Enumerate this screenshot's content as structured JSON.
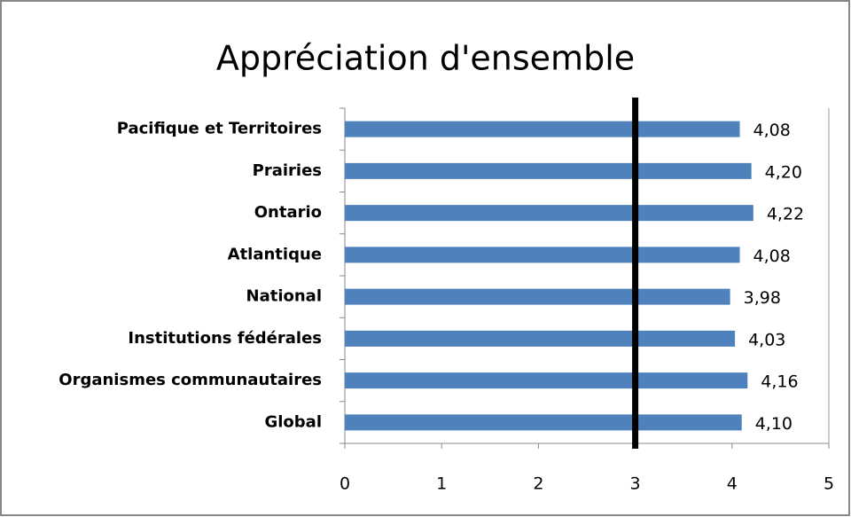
{
  "chart_data": {
    "type": "barh",
    "title": "Appréciation d'ensemble",
    "categories": [
      "Pacifique et Territoires",
      "Prairies",
      "Ontario",
      "Atlantique",
      "National",
      "Institutions fédérales",
      "Organismes communautaires",
      "Global"
    ],
    "values": [
      4.08,
      4.2,
      4.22,
      4.08,
      3.98,
      4.03,
      4.16,
      4.1
    ],
    "value_labels": [
      "4,08",
      "4,20",
      "4,22",
      "4,08",
      "3,98",
      "4,03",
      "4,16",
      "4,10"
    ],
    "color": "#4f81bd",
    "xlim": [
      0,
      5
    ],
    "xticks": [
      0,
      1,
      2,
      3,
      4,
      5
    ],
    "reference_line": 3
  }
}
